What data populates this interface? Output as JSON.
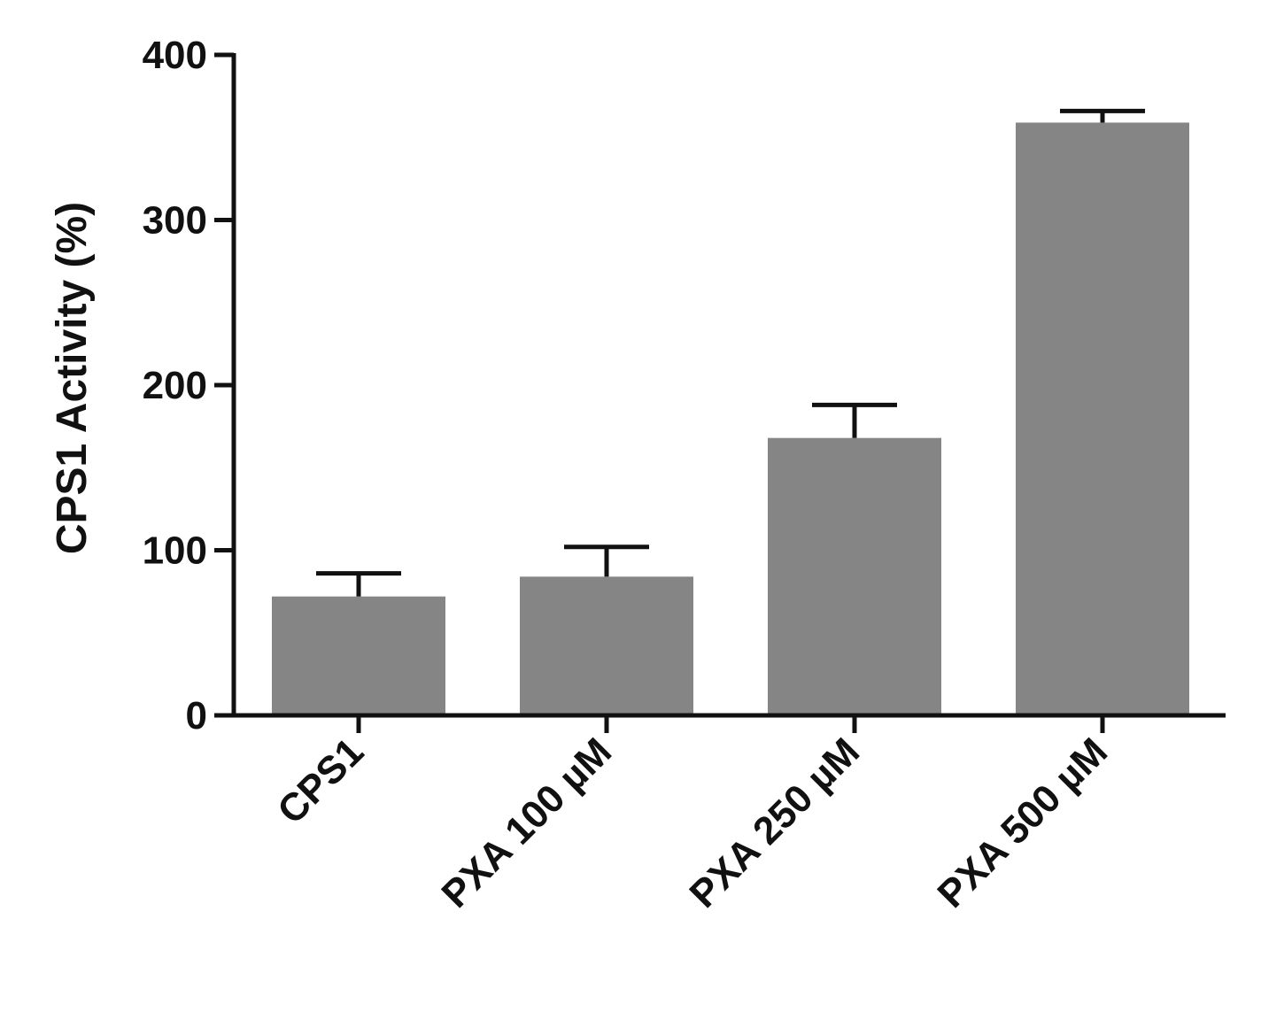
{
  "chart_data": {
    "type": "bar",
    "title": "",
    "xlabel": "",
    "ylabel": "CPS1 Activity (%)",
    "ylim": [
      0,
      400
    ],
    "yticks": [
      0,
      100,
      200,
      300,
      400
    ],
    "grid": false,
    "legend": "none",
    "categories": [
      "CPS1",
      "PXA 100 µM",
      "PXA 250 µM",
      "PXA 500 µM"
    ],
    "series": [
      {
        "values": [
          72,
          84,
          168,
          359
        ],
        "error_upper": [
          14,
          18,
          20,
          7
        ]
      }
    ],
    "colors": {
      "bar": "#858585",
      "axis": "#111111",
      "error_bar": "#111111"
    }
  }
}
